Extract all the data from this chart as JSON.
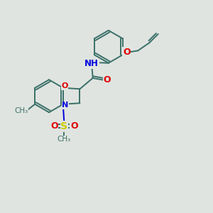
{
  "bg_color": "#e0e4e0",
  "bond_color": "#3a7068",
  "bond_width": 1.4,
  "atom_colors": {
    "O": "#e00000",
    "N": "#0000dd",
    "S": "#cccc00",
    "C": "#3a7068"
  },
  "figsize": [
    3.0,
    3.0
  ],
  "dpi": 100,
  "xlim": [
    0,
    10
  ],
  "ylim": [
    0,
    10
  ]
}
